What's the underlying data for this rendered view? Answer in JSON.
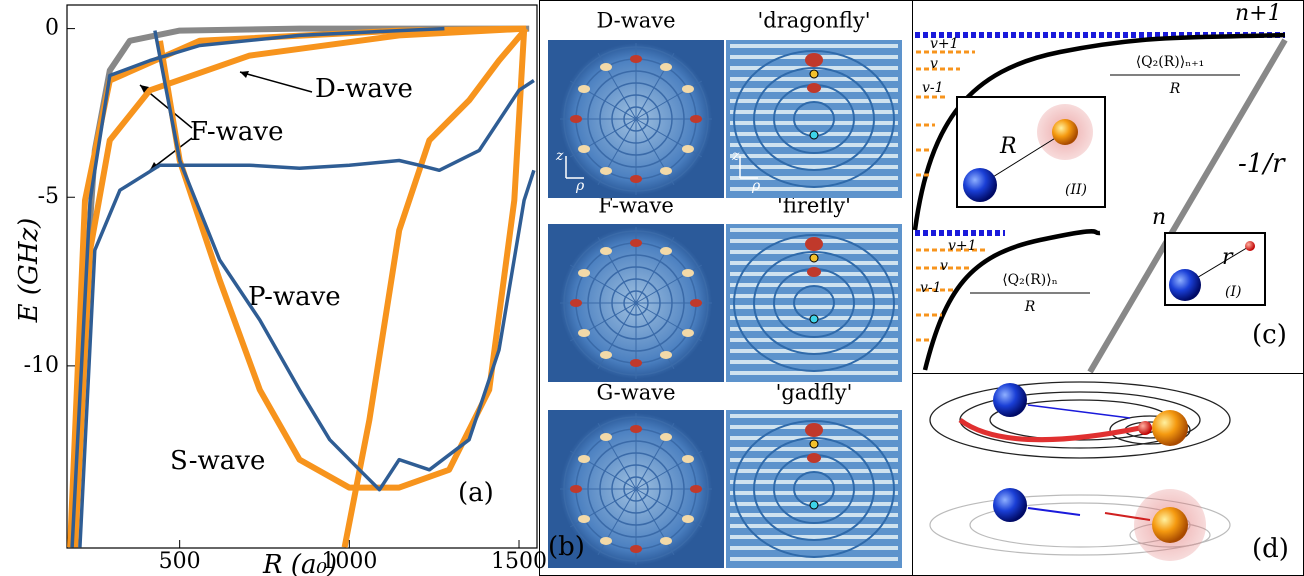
{
  "chart_data": {
    "type": "line",
    "xlabel": "R (a₀)",
    "ylabel": "E (GHz)",
    "xlim": [
      168,
      1553
    ],
    "ylim": [
      -15.4,
      0.7
    ],
    "xticks": [
      500,
      1000,
      1500
    ],
    "yticks": [
      0,
      -5,
      -10
    ],
    "series": [
      {
        "color": "#888888",
        "x": [
          192,
          221,
          250,
          294,
          353,
          500,
          853,
          1530
        ],
        "values": [
          -15.38,
          -8.05,
          -3.61,
          -1.24,
          -0.36,
          -0.06,
          0,
          0
        ]
      },
      {
        "color": "#f7941d",
        "x": [
          442,
          500,
          618,
          736,
          853,
          1000,
          1147,
          1294,
          1412,
          1486,
          1515
        ],
        "values": [
          -0.36,
          -3.91,
          -7.46,
          -10.71,
          -12.78,
          -13.61,
          -13.61,
          -13.08,
          -10.71,
          -5.09,
          -0.06
        ]
      },
      {
        "color": "#f7941d",
        "x": [
          986,
          1059,
          1147,
          1236,
          1353,
          1441,
          1521
        ],
        "values": [
          -15.38,
          -11.6,
          -5.98,
          -3.31,
          -2.13,
          -0.95,
          0
        ]
      },
      {
        "color": "#f7941d",
        "x": [
          192,
          236,
          294,
          412,
          706,
          1147,
          1521
        ],
        "values": [
          -15.38,
          -6.57,
          -3.31,
          -1.83,
          -0.8,
          -0.2,
          0
        ]
      },
      {
        "color": "#f7941d",
        "x": [
          177,
          221,
          294,
          559,
          1147,
          1521
        ],
        "values": [
          -15.38,
          -5.09,
          -1.54,
          -0.36,
          -0.06,
          0
        ]
      },
      {
        "color": "#2f5d94",
        "x": [
          206,
          250,
          324,
          442,
          559,
          706,
          853,
          1000,
          1147,
          1206,
          1265,
          1383,
          1500,
          1544
        ],
        "values": [
          -15.38,
          -6.57,
          -4.79,
          -4.05,
          -4.05,
          -4.05,
          -4.14,
          -4.05,
          -3.91,
          -4.05,
          -4.2,
          -3.61,
          -1.83,
          -1.54
        ]
      },
      {
        "color": "#2f5d94",
        "x": [
          183,
          236,
          294,
          412,
          559,
          853,
          1147,
          1280
        ],
        "values": [
          -15.38,
          -5.09,
          -1.39,
          -0.95,
          -0.5,
          -0.2,
          -0.06,
          0
        ]
      },
      {
        "color": "#2f5d94",
        "x": [
          427,
          500,
          618,
          736,
          853,
          942,
          1030,
          1089,
          1147,
          1236,
          1353,
          1441,
          1515,
          1544
        ],
        "values": [
          -0.06,
          -3.91,
          -6.86,
          -8.64,
          -10.71,
          -12.19,
          -13.08,
          -13.67,
          -12.78,
          -13.08,
          -12.19,
          -9.53,
          -5.09,
          -4.2
        ]
      }
    ],
    "annotations": [
      "D-wave",
      "F-wave",
      "P-wave",
      "S-wave"
    ],
    "panel_label": "(a)"
  },
  "panel_b": {
    "label": "(b)",
    "axis_z": "z",
    "axis_rho": "ρ",
    "rows": [
      {
        "wave": "D-wave",
        "name": "'dragonfly'"
      },
      {
        "wave": "F-wave",
        "name": "'firefly'"
      },
      {
        "wave": "G-wave",
        "name": "'gadfly'"
      }
    ]
  },
  "panel_c": {
    "label": "(c)",
    "upper_level": "n+1",
    "lower_level": "n",
    "upper_v": [
      "v+1",
      "v",
      "v-1"
    ],
    "lower_v": [
      "v+1",
      "v",
      "v-1"
    ],
    "upper_expr": "⟨Q₂(R)⟩ₙ₊₁",
    "lower_expr": "⟨Q₂(R)⟩ₙ",
    "denominator": "R",
    "coulomb": "-1/r",
    "inset_upper_r": "R",
    "inset_upper_label": "(II)",
    "inset_lower_r": "r",
    "inset_lower_label": "(I)"
  },
  "panel_d": {
    "label": "(d)"
  }
}
